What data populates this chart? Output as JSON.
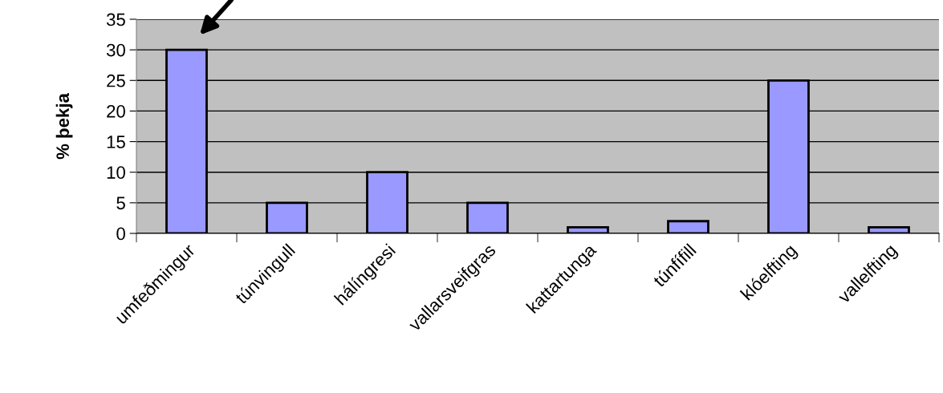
{
  "chart_data": {
    "type": "bar",
    "ylabel": "% þekja",
    "categories": [
      "umfeðmingur",
      "túnvingull",
      "hálíngresi",
      "vallarsveifgras",
      "kattartunga",
      "túnfífill",
      "klóelfting",
      "vallelfting"
    ],
    "values": [
      30,
      5,
      10,
      5,
      1,
      2,
      25,
      1
    ],
    "color": "#9999ff",
    "ylim": [
      0,
      35
    ],
    "yticks": [
      0,
      5,
      10,
      15,
      20,
      25,
      30,
      35
    ],
    "grid": "y",
    "legend": false
  }
}
